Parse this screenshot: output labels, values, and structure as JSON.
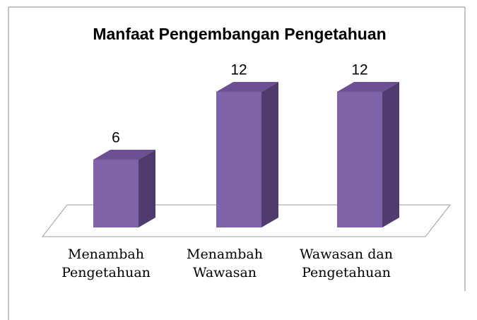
{
  "chart_data": {
    "type": "bar",
    "title": "Manfaat Pengembangan Pengetahuan",
    "categories": [
      "Menambah Pengetahuan",
      "Menambah Wawasan",
      "Wawasan dan Pengetahuan"
    ],
    "values": [
      6,
      12,
      12
    ],
    "color": "#7f63a8"
  }
}
